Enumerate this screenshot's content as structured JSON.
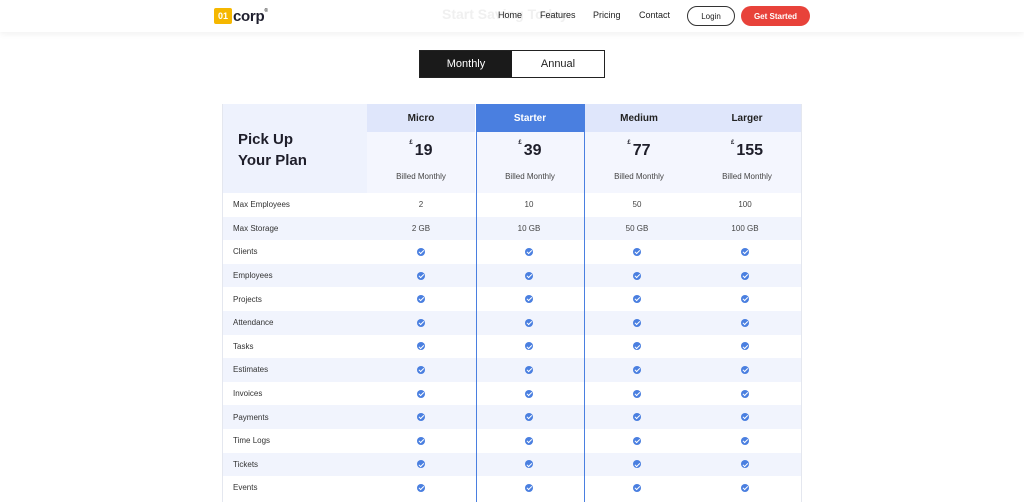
{
  "header": {
    "logo_mark": "01",
    "logo_text": "corp",
    "logo_tm": "®",
    "ghost_title": "Start Saving Today",
    "nav": [
      "Home",
      "Features",
      "Pricing",
      "Contact"
    ],
    "login_label": "Login",
    "get_started_label": "Get Started"
  },
  "billing_toggle": {
    "monthly_label": "Monthly",
    "annual_label": "Annual",
    "selected": "Monthly"
  },
  "pricing": {
    "heading_line1": "Pick Up",
    "heading_line2": "Your Plan",
    "currency": "£",
    "plans": [
      {
        "name": "Micro",
        "price": "19",
        "billing": "Billed Monthly"
      },
      {
        "name": "Starter",
        "price": "39",
        "billing": "Billed Monthly"
      },
      {
        "name": "Medium",
        "price": "77",
        "billing": "Billed Monthly"
      },
      {
        "name": "Larger",
        "price": "155",
        "billing": "Billed Monthly"
      }
    ],
    "features": [
      {
        "label": "Max Employees",
        "values": [
          "2",
          "10",
          "50",
          "100"
        ]
      },
      {
        "label": "Max Storage",
        "values": [
          "2 GB",
          "10 GB",
          "50 GB",
          "100 GB"
        ]
      },
      {
        "label": "Clients",
        "values": [
          "check",
          "check",
          "check",
          "check"
        ]
      },
      {
        "label": "Employees",
        "values": [
          "check",
          "check",
          "check",
          "check"
        ]
      },
      {
        "label": "Projects",
        "values": [
          "check",
          "check",
          "check",
          "check"
        ]
      },
      {
        "label": "Attendance",
        "values": [
          "check",
          "check",
          "check",
          "check"
        ]
      },
      {
        "label": "Tasks",
        "values": [
          "check",
          "check",
          "check",
          "check"
        ]
      },
      {
        "label": "Estimates",
        "values": [
          "check",
          "check",
          "check",
          "check"
        ]
      },
      {
        "label": "Invoices",
        "values": [
          "check",
          "check",
          "check",
          "check"
        ]
      },
      {
        "label": "Payments",
        "values": [
          "check",
          "check",
          "check",
          "check"
        ]
      },
      {
        "label": "Time Logs",
        "values": [
          "check",
          "check",
          "check",
          "check"
        ]
      },
      {
        "label": "Tickets",
        "values": [
          "check",
          "check",
          "check",
          "check"
        ]
      },
      {
        "label": "Events",
        "values": [
          "check",
          "check",
          "check",
          "check"
        ]
      }
    ]
  },
  "colors": {
    "accent": "#4a7fe0",
    "cta": "#e8423a",
    "logo": "#f5b700",
    "row_alt": "#f1f4fd"
  }
}
